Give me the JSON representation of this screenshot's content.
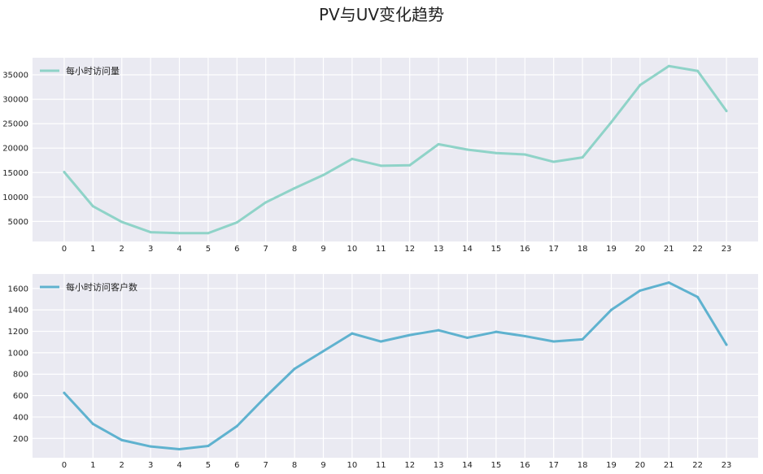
{
  "figure": {
    "title": "PV与UV变化趋势"
  },
  "chart_data": [
    {
      "type": "line",
      "x": [
        0,
        1,
        2,
        3,
        4,
        5,
        6,
        7,
        8,
        9,
        10,
        11,
        12,
        13,
        14,
        15,
        16,
        17,
        18,
        19,
        20,
        21,
        22,
        23
      ],
      "series": [
        {
          "name": "每小时访问量",
          "color": "#8fd3c8",
          "values": [
            15100,
            8100,
            4900,
            2800,
            2600,
            2600,
            4800,
            8900,
            11800,
            14500,
            17800,
            16400,
            16500,
            20800,
            19700,
            19000,
            18700,
            17200,
            18100,
            25300,
            32900,
            36800,
            35800,
            27600
          ]
        }
      ],
      "xticks": [
        "0",
        "1",
        "2",
        "3",
        "4",
        "5",
        "6",
        "7",
        "8",
        "9",
        "10",
        "11",
        "12",
        "13",
        "14",
        "15",
        "16",
        "17",
        "18",
        "19",
        "20",
        "21",
        "22",
        "23"
      ],
      "yticks": [
        "5000",
        "10000",
        "15000",
        "20000",
        "25000",
        "30000",
        "35000"
      ],
      "ytick_values": [
        5000,
        10000,
        15000,
        20000,
        25000,
        30000,
        35000
      ],
      "xlim": [
        -1.1,
        24.1
      ],
      "ylim": [
        900,
        38500
      ],
      "grid": true,
      "legend": "upper-left"
    },
    {
      "type": "line",
      "x": [
        0,
        1,
        2,
        3,
        4,
        5,
        6,
        7,
        8,
        9,
        10,
        11,
        12,
        13,
        14,
        15,
        16,
        17,
        18,
        19,
        20,
        21,
        22,
        23
      ],
      "series": [
        {
          "name": "每小时访问客户数",
          "color": "#5fb2cf",
          "values": [
            625,
            335,
            185,
            125,
            100,
            130,
            315,
            590,
            850,
            1015,
            1180,
            1105,
            1165,
            1210,
            1140,
            1195,
            1155,
            1105,
            1125,
            1400,
            1580,
            1655,
            1520,
            1075
          ]
        }
      ],
      "xticks": [
        "0",
        "1",
        "2",
        "3",
        "4",
        "5",
        "6",
        "7",
        "8",
        "9",
        "10",
        "11",
        "12",
        "13",
        "14",
        "15",
        "16",
        "17",
        "18",
        "19",
        "20",
        "21",
        "22",
        "23"
      ],
      "yticks": [
        "200",
        "400",
        "600",
        "800",
        "1000",
        "1200",
        "1400",
        "1600"
      ],
      "ytick_values": [
        200,
        400,
        600,
        800,
        1000,
        1200,
        1400,
        1600
      ],
      "xlim": [
        -1.1,
        24.1
      ],
      "ylim": [
        20,
        1735
      ],
      "grid": true,
      "legend": "upper-left"
    }
  ]
}
